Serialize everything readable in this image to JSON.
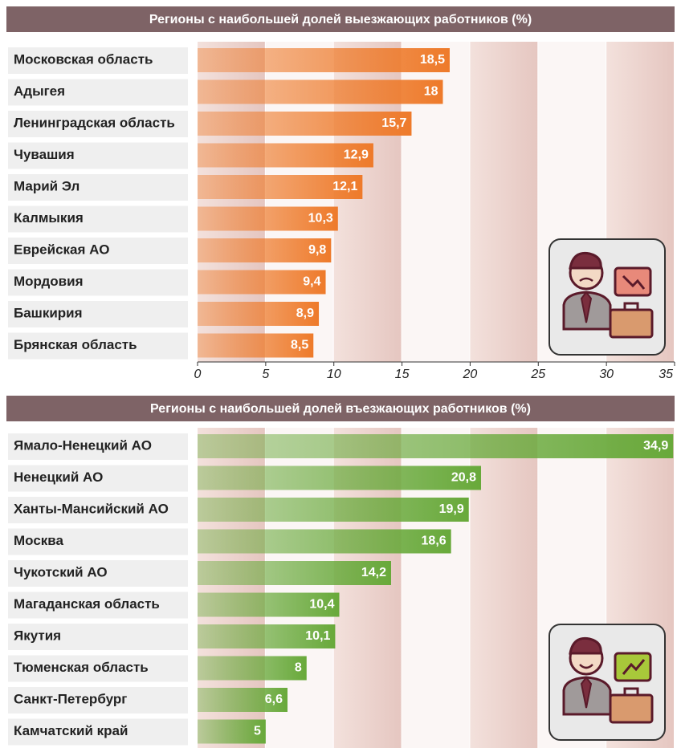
{
  "chart_data": [
    {
      "type": "bar",
      "orientation": "horizontal",
      "title": "Регионы с наибольшей долей выезжающих работников (%)",
      "categories": [
        "Московская область",
        "Адыгея",
        "Ленинградская область",
        "Чувашия",
        "Марий Эл",
        "Калмыкия",
        "Еврейская АО",
        "Мордовия",
        "Башкирия",
        "Брянская область"
      ],
      "values": [
        18.5,
        18,
        15.7,
        12.9,
        12.1,
        10.3,
        9.8,
        9.4,
        8.9,
        8.5
      ],
      "value_labels": [
        "18,5",
        "18",
        "15,7",
        "12,9",
        "12,1",
        "10,3",
        "9,8",
        "9,4",
        "8,9",
        "8,5"
      ],
      "color": "#ee7a2a",
      "xlim": [
        0,
        35
      ],
      "xticks": [
        0,
        5,
        10,
        15,
        20,
        25,
        30,
        35
      ]
    },
    {
      "type": "bar",
      "orientation": "horizontal",
      "title": "Регионы с наибольшей долей въезжающих работников (%)",
      "categories": [
        "Ямало-Ненецкий АО",
        "Ненецкий АО",
        "Ханты-Мансийский АО",
        "Москва",
        "Чукотский АО",
        "Магаданская область",
        "Якутия",
        "Тюменская область",
        "Санкт-Петербург",
        "Камчатский край"
      ],
      "values": [
        34.9,
        20.8,
        19.9,
        18.6,
        14.2,
        10.4,
        10.1,
        8,
        6.6,
        5
      ],
      "value_labels": [
        "34,9",
        "20,8",
        "19,9",
        "18,6",
        "14,2",
        "10,4",
        "10,1",
        "8",
        "6,6",
        "5"
      ],
      "color": "#68a93a",
      "xlim": [
        0,
        35
      ]
    }
  ]
}
